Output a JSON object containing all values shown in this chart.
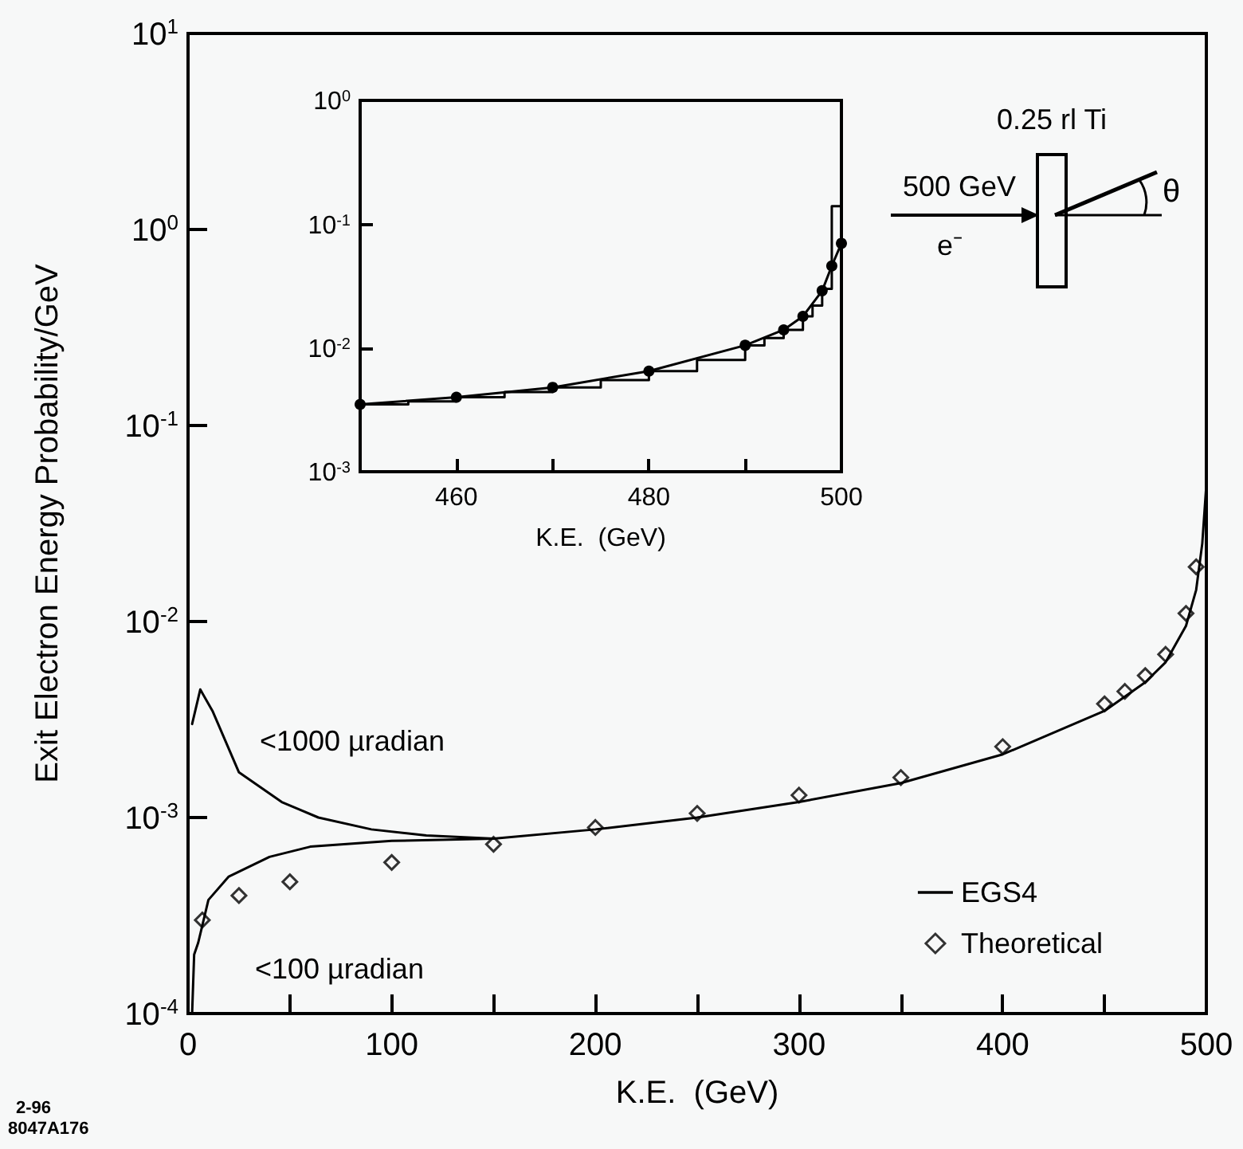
{
  "chart_data": [
    {
      "type": "line",
      "xlabel": "K.E.  (GeV)",
      "ylabel": "Exit Electron Energy Probability/GeV",
      "xlim": [
        0,
        500
      ],
      "xticks": [
        0,
        {
          "value": 50,
          "label": null
        },
        100,
        {
          "value": 150,
          "label": null
        },
        200,
        {
          "value": 250,
          "label": null
        },
        300,
        {
          "value": 350,
          "label": null
        },
        400,
        {
          "value": 450,
          "label": null
        },
        500
      ],
      "ylim": [
        0.0001,
        10
      ],
      "yticks": [
        {
          "value": 0.0001,
          "label": "10$^{-4}$"
        },
        {
          "value": 0.001,
          "label": "10$^{-3}$"
        },
        {
          "value": 0.01,
          "label": "10$^{-2}$"
        },
        {
          "value": 0.1,
          "label": "10$^{-1}$"
        },
        {
          "value": 1,
          "label": "10$^{0}$"
        },
        {
          "value": 10,
          "label": "10$^{1}$"
        }
      ],
      "log": "y",
      "grid": false,
      "legend": "bottom right",
      "line_style": "solid",
      "marker": "none",
      "series": [
        {
          "name": "EGS4",
          "color": "#000000",
          "x": [
            2,
            6,
            12,
            25,
            46,
            64,
            90,
            117,
            150,
            200,
            250,
            300,
            350,
            400,
            450,
            470,
            480,
            490,
            495,
            498,
            500
          ],
          "values": [
            0.003,
            0.0045,
            0.0035,
            0.0017,
            0.0012,
            0.001,
            0.00087,
            0.00081,
            0.00078,
            0.00087,
            0.001,
            0.0012,
            0.0015,
            0.0021,
            0.0035,
            0.0049,
            0.0062,
            0.0095,
            0.0145,
            0.025,
            0.05
          ]
        },
        {
          "color": "#000000",
          "x": [
            2,
            3,
            5,
            10,
            20,
            40,
            60,
            100,
            150
          ],
          "values": [
            0.0001,
            0.0002,
            0.00023,
            0.00038,
            0.0005,
            0.00063,
            0.00071,
            0.00076,
            0.00078
          ]
        },
        {
          "name": "Theoretical",
          "type": "scatter",
          "marker": "diamond",
          "color": "#000000",
          "x": [
            7,
            25,
            50,
            100,
            150,
            200,
            250,
            300,
            350,
            400,
            450,
            460,
            470,
            480,
            490,
            495
          ],
          "values": [
            0.0003,
            0.0004,
            0.00047,
            0.00059,
            0.00073,
            0.00089,
            0.00105,
            0.0013,
            0.0016,
            0.0023,
            0.0038,
            0.0044,
            0.0053,
            0.0068,
            0.011,
            0.019
          ]
        }
      ],
      "annotations": [
        "<1000 µradian",
        "<100 µradian",
        "0.25 rl Ti",
        "500 GeV",
        "e⁻",
        "θ",
        "2-96",
        "8047A176"
      ]
    },
    {
      "type": "line",
      "xlabel": "K.E.  (GeV)",
      "xlim": [
        450,
        500
      ],
      "xticks": [
        {
          "value": 450,
          "label": null
        },
        460,
        {
          "value": 470,
          "label": null
        },
        480,
        {
          "value": 490,
          "label": null
        },
        500
      ],
      "ylim": [
        0.001,
        1
      ],
      "yticks": [
        {
          "value": 0.001,
          "label": "10$^{-3}$"
        },
        {
          "value": 0.01,
          "label": "10$^{-2}$"
        },
        {
          "value": 0.1,
          "label": "10$^{-1}$"
        },
        {
          "value": 1,
          "label": "10$^{0}$"
        }
      ],
      "log": "y",
      "grid": false,
      "line_style": "solid",
      "series": [
        {
          "marker": "circle",
          "color": "#000000",
          "x": [
            450,
            460,
            470,
            480,
            490,
            494,
            496,
            498,
            499,
            500
          ],
          "values": [
            0.0035,
            0.004,
            0.0048,
            0.0065,
            0.0105,
            0.014,
            0.018,
            0.029,
            0.046,
            0.07
          ]
        },
        {
          "type": "step",
          "marker": "none",
          "color": "#000000",
          "x": [
            450,
            455,
            460,
            465,
            470,
            475,
            480,
            485,
            490,
            492,
            494,
            496,
            497,
            498,
            499,
            500
          ],
          "values": [
            0.0035,
            0.0037,
            0.004,
            0.0044,
            0.0048,
            0.0055,
            0.0065,
            0.008,
            0.0105,
            0.012,
            0.014,
            0.018,
            0.022,
            0.03,
            0.14,
            0.14
          ]
        }
      ]
    }
  ]
}
